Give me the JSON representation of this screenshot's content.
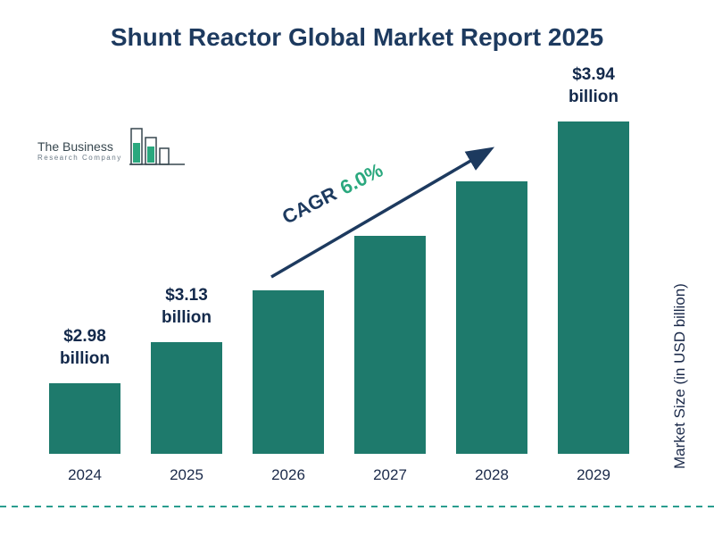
{
  "title": "Shunt Reactor Global Market Report 2025",
  "logo": {
    "line1": "The Business",
    "line2": "Research Company"
  },
  "chart_data": {
    "type": "bar",
    "title": "Shunt Reactor Global Market Report 2025",
    "categories": [
      "2024",
      "2025",
      "2026",
      "2027",
      "2028",
      "2029"
    ],
    "values": [
      2.98,
      3.13,
      3.32,
      3.52,
      3.72,
      3.94
    ],
    "data_labels": [
      "$2.98 billion",
      "$3.13 billion",
      null,
      null,
      null,
      "$3.94 billion"
    ],
    "xlabel": "",
    "ylabel": "Market Size (in USD billion)",
    "bar_color": "#1e7a6c",
    "annotation": {
      "label": "CAGR",
      "value": "6.0%"
    },
    "legend": "none",
    "grid": "off"
  },
  "colors": {
    "title_navy": "#1d3a5f",
    "bar_teal": "#1e7a6c",
    "cagr_green": "#2aa87e",
    "dashed_teal": "#2a9d8f"
  }
}
